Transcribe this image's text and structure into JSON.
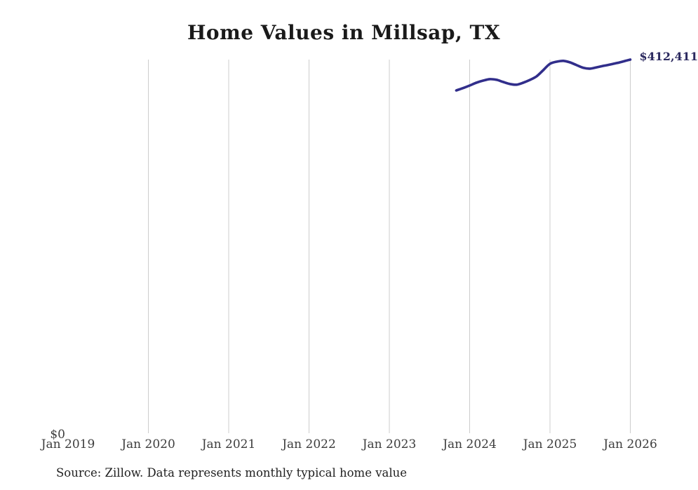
{
  "page": {
    "title": "Home Values in Millsap, TX",
    "source_note": "Source: Zillow. Data represents monthly typical home value"
  },
  "chart_data": {
    "type": "line",
    "title": "Home Values in Millsap, TX",
    "xlabel": "",
    "ylabel": "",
    "legend": "none",
    "grid": "vertical-only",
    "colors": {
      "line": "#312e8b",
      "value_label": "#2b295f",
      "gridline": "#cccccc",
      "tick_label": "#3d3d3d",
      "title": "#1a1a1a"
    },
    "x_ticks": [
      {
        "label": "Jan 2019",
        "year": 2019,
        "gridline": false
      },
      {
        "label": "Jan 2020",
        "year": 2020,
        "gridline": true
      },
      {
        "label": "Jan 2021",
        "year": 2021,
        "gridline": true
      },
      {
        "label": "Jan 2022",
        "year": 2022,
        "gridline": true
      },
      {
        "label": "Jan 2023",
        "year": 2023,
        "gridline": true
      },
      {
        "label": "Jan 2024",
        "year": 2024,
        "gridline": true
      },
      {
        "label": "Jan 2025",
        "year": 2025,
        "gridline": true
      },
      {
        "label": "Jan 2026",
        "year": 2026,
        "gridline": true
      }
    ],
    "y_axis": {
      "min": 0,
      "max": 412411,
      "zero_label": "$0"
    },
    "end_value_label": "$412,411",
    "series": [
      {
        "name": "Typical home value",
        "points": [
          {
            "date": "2023-11",
            "value": 378400
          },
          {
            "date": "2023-12",
            "value": 380900
          },
          {
            "date": "2024-01",
            "value": 383800
          },
          {
            "date": "2024-02",
            "value": 386900
          },
          {
            "date": "2024-03",
            "value": 389200
          },
          {
            "date": "2024-04",
            "value": 390800
          },
          {
            "date": "2024-05",
            "value": 390100
          },
          {
            "date": "2024-06",
            "value": 387700
          },
          {
            "date": "2024-07",
            "value": 385500
          },
          {
            "date": "2024-08",
            "value": 384700
          },
          {
            "date": "2024-09",
            "value": 386900
          },
          {
            "date": "2024-10",
            "value": 390000
          },
          {
            "date": "2024-11",
            "value": 393900
          },
          {
            "date": "2024-12",
            "value": 400800
          },
          {
            "date": "2025-01",
            "value": 407800
          },
          {
            "date": "2025-02",
            "value": 410100
          },
          {
            "date": "2025-03",
            "value": 411000
          },
          {
            "date": "2025-04",
            "value": 409300
          },
          {
            "date": "2025-05",
            "value": 406200
          },
          {
            "date": "2025-06",
            "value": 403300
          },
          {
            "date": "2025-07",
            "value": 402400
          },
          {
            "date": "2025-08",
            "value": 403900
          },
          {
            "date": "2025-09",
            "value": 405500
          },
          {
            "date": "2025-10",
            "value": 407000
          },
          {
            "date": "2025-11",
            "value": 408600
          },
          {
            "date": "2025-12",
            "value": 410500
          },
          {
            "date": "2026-01",
            "value": 412411
          }
        ]
      }
    ]
  }
}
